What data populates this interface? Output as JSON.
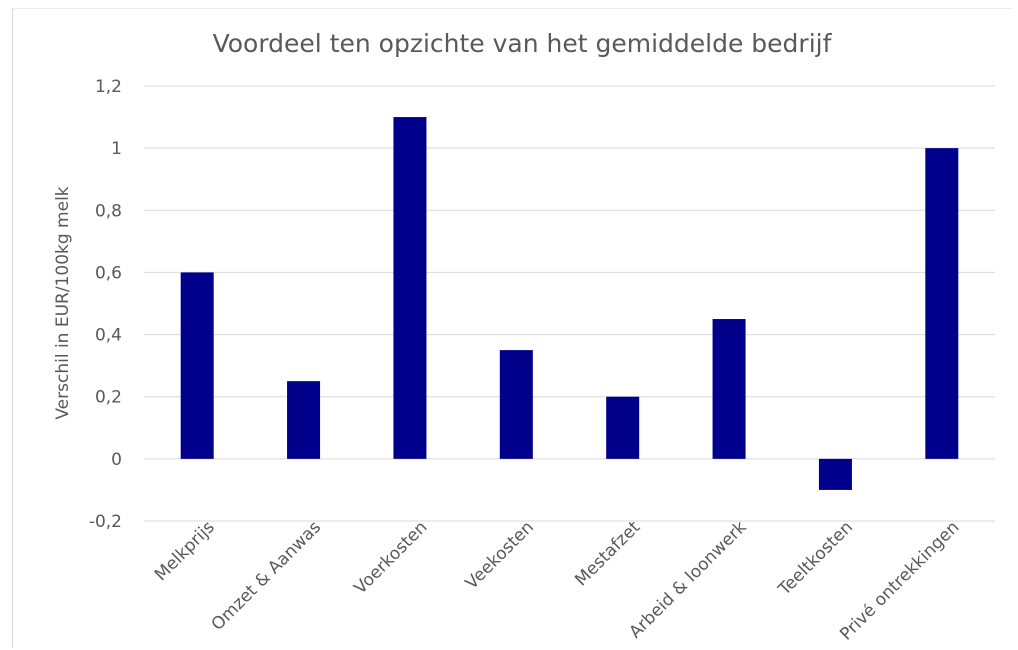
{
  "chart_data": {
    "type": "bar",
    "title": "Voordeel ten opzichte van het gemiddelde bedrijf",
    "xlabel": "",
    "ylabel": "Verschil in EUR/100kg  melk",
    "categories": [
      "Melkprijs",
      "Omzet & Aanwas",
      "Voerkosten",
      "Veekosten",
      "Mestafzet",
      "Arbeid & loonwerk",
      "Teeltkosten",
      "Privé ontrekkingen"
    ],
    "values": [
      0.6,
      0.25,
      1.1,
      0.35,
      0.2,
      0.45,
      -0.1,
      1.0
    ],
    "ylim": [
      -0.2,
      1.2
    ],
    "yticks": [
      -0.2,
      0,
      0.2,
      0.4,
      0.6,
      0.8,
      1,
      1.2
    ],
    "ytick_labels": [
      "-0,2",
      "0",
      "0,2",
      "0,4",
      "0,6",
      "0,8",
      "1",
      "1,2"
    ],
    "grid": true,
    "bar_color": "#00008B",
    "legend": "none"
  }
}
